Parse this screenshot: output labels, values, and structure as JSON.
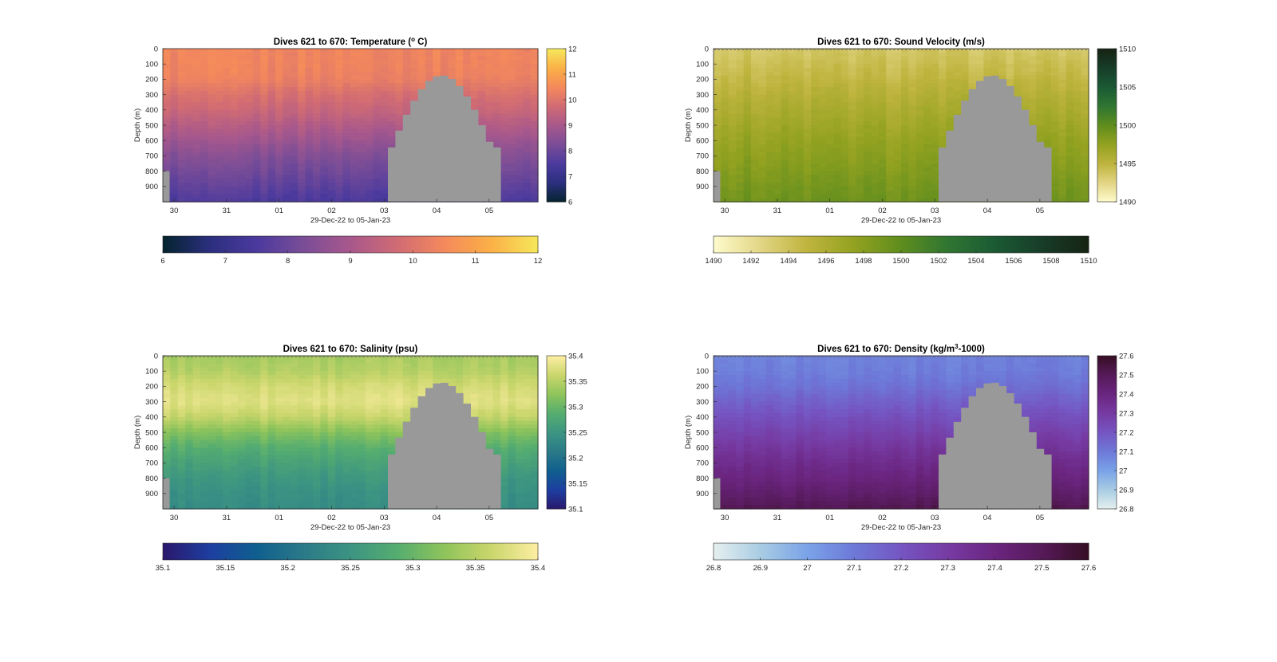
{
  "figure": {
    "background": "#ffffff"
  },
  "chart_data": [
    {
      "type": "heatmap",
      "title_prefix": "Dives 621 to 670: Temperature (",
      "title_sup": "o",
      "title_suffix": " C)",
      "xlabel": "29-Dec-22 to 05-Jan-23",
      "ylabel": "Depth (m)",
      "x_ticks": [
        "30",
        "31",
        "01",
        "02",
        "03",
        "04",
        "05"
      ],
      "x_tick_dives": [
        1.5,
        8.5,
        15.5,
        22.5,
        29.5,
        36.5,
        43.5
      ],
      "dive_range": [
        621,
        670
      ],
      "y_ticks": [
        "0",
        "100",
        "200",
        "300",
        "400",
        "500",
        "600",
        "700",
        "800",
        "900"
      ],
      "ylim": [
        0,
        1000
      ],
      "colormap": "thermal",
      "clim": [
        6,
        12
      ],
      "side_colorbar_ticks": [
        "6",
        "7",
        "8",
        "9",
        "10",
        "11",
        "12"
      ],
      "bottom_colorbar_ticks": [
        "6",
        "7",
        "8",
        "9",
        "10",
        "11",
        "12"
      ],
      "profile_depth_m": [
        0,
        100,
        200,
        300,
        400,
        500,
        600,
        700,
        800,
        900,
        1000
      ],
      "profile_values": [
        10.4,
        10.4,
        10.3,
        9.9,
        9.6,
        9.2,
        8.8,
        8.4,
        8.1,
        7.8,
        7.5
      ],
      "dashed_boundary": false
    },
    {
      "type": "heatmap",
      "title_prefix": "Dives 621 to 670: Sound Velocity (m/s)",
      "title_sup": "",
      "title_suffix": "",
      "xlabel": "29-Dec-22 to 05-Jan-23",
      "ylabel": "Depth (m)",
      "x_ticks": [
        "30",
        "31",
        "01",
        "02",
        "03",
        "04",
        "05"
      ],
      "x_tick_dives": [
        1.5,
        8.5,
        15.5,
        22.5,
        29.5,
        36.5,
        43.5
      ],
      "dive_range": [
        621,
        670
      ],
      "y_ticks": [
        "0",
        "100",
        "200",
        "300",
        "400",
        "500",
        "600",
        "700",
        "800",
        "900"
      ],
      "ylim": [
        0,
        1000
      ],
      "colormap": "speed",
      "clim": [
        1490,
        1510
      ],
      "side_colorbar_ticks": [
        "1490",
        "1495",
        "1500",
        "1505",
        "1510"
      ],
      "bottom_colorbar_ticks": [
        "1490",
        "1492",
        "1494",
        "1496",
        "1498",
        "1500",
        "1502",
        "1504",
        "1506",
        "1508",
        "1510"
      ],
      "profile_depth_m": [
        0,
        100,
        200,
        300,
        400,
        500,
        600,
        700,
        800,
        900,
        1000
      ],
      "profile_values": [
        1493.5,
        1494.2,
        1494.8,
        1495.5,
        1496.1,
        1496.7,
        1497.3,
        1497.8,
        1498.3,
        1498.8,
        1499.3
      ],
      "dashed_boundary": true
    },
    {
      "type": "heatmap",
      "title_prefix": "Dives 621 to 670: Salinity (psu)",
      "title_sup": "",
      "title_suffix": "",
      "xlabel": "29-Dec-22 to 05-Jan-23",
      "ylabel": "Depth (m)",
      "x_ticks": [
        "30",
        "31",
        "01",
        "02",
        "03",
        "04",
        "05"
      ],
      "x_tick_dives": [
        1.5,
        8.5,
        15.5,
        22.5,
        29.5,
        36.5,
        43.5
      ],
      "dive_range": [
        621,
        670
      ],
      "y_ticks": [
        "0",
        "100",
        "200",
        "300",
        "400",
        "500",
        "600",
        "700",
        "800",
        "900"
      ],
      "ylim": [
        0,
        1000
      ],
      "colormap": "haline",
      "clim": [
        35.1,
        35.4
      ],
      "side_colorbar_ticks": [
        "35.1",
        "35.15",
        "35.2",
        "35.25",
        "35.3",
        "35.35",
        "35.4"
      ],
      "bottom_colorbar_ticks": [
        "35.1",
        "35.15",
        "35.2",
        "35.25",
        "35.3",
        "35.35",
        "35.4"
      ],
      "profile_depth_m": [
        0,
        100,
        200,
        300,
        400,
        500,
        600,
        700,
        800,
        900,
        1000
      ],
      "profile_values": [
        35.34,
        35.35,
        35.37,
        35.38,
        35.36,
        35.32,
        35.29,
        35.27,
        35.255,
        35.245,
        35.24
      ],
      "dashed_boundary": true
    },
    {
      "type": "heatmap",
      "title_prefix": "Dives 621 to 670: Density (kg/m",
      "title_sup": "3",
      "title_suffix": "-1000)",
      "xlabel": "29-Dec-22 to 05-Jan-23",
      "ylabel": "Depth (m)",
      "x_ticks": [
        "30",
        "31",
        "01",
        "02",
        "03",
        "04",
        "05"
      ],
      "x_tick_dives": [
        1.5,
        8.5,
        15.5,
        22.5,
        29.5,
        36.5,
        43.5
      ],
      "dive_range": [
        621,
        670
      ],
      "y_ticks": [
        "0",
        "100",
        "200",
        "300",
        "400",
        "500",
        "600",
        "700",
        "800",
        "900"
      ],
      "ylim": [
        0,
        1000
      ],
      "colormap": "dense",
      "clim": [
        26.8,
        27.6
      ],
      "side_colorbar_ticks": [
        "26.8",
        "26.9",
        "27",
        "27.1",
        "27.2",
        "27.3",
        "27.4",
        "27.5",
        "27.6"
      ],
      "bottom_colorbar_ticks": [
        "26.8",
        "26.9",
        "27",
        "27.1",
        "27.2",
        "27.3",
        "27.4",
        "27.5",
        "27.6"
      ],
      "profile_depth_m": [
        0,
        100,
        200,
        300,
        400,
        500,
        600,
        700,
        800,
        900,
        1000
      ],
      "profile_values": [
        27.08,
        27.09,
        27.12,
        27.17,
        27.22,
        27.27,
        27.32,
        27.37,
        27.41,
        27.46,
        27.52
      ],
      "dashed_boundary": true
    }
  ],
  "missing_data_color": "#999999",
  "missing_region": {
    "dives_start_day_offset": 30,
    "shallowest_depth_m": 175,
    "left_edge_depth_m": 800
  },
  "colormaps": {
    "thermal": [
      "#04232e",
      "#2b2f7e",
      "#4b3a9e",
      "#7a4d97",
      "#a8588c",
      "#d06b74",
      "#f4895c",
      "#fbb046",
      "#f6e85c"
    ],
    "speed": [
      "#fefccd",
      "#e2d585",
      "#bfb43e",
      "#93a220",
      "#5f8d1d",
      "#2f7532",
      "#1b5a34",
      "#173d28",
      "#172313"
    ],
    "haline": [
      "#2a186c",
      "#1d3ea0",
      "#0f5f8f",
      "#2b7a88",
      "#3c9482",
      "#55ad70",
      "#8ec45b",
      "#cad66c",
      "#fdeea3"
    ],
    "dense": [
      "#e6f0f0",
      "#a9cce3",
      "#7aa3e8",
      "#6d79d8",
      "#7555c2",
      "#763ba3",
      "#6b2580",
      "#561a59",
      "#360e24"
    ]
  }
}
